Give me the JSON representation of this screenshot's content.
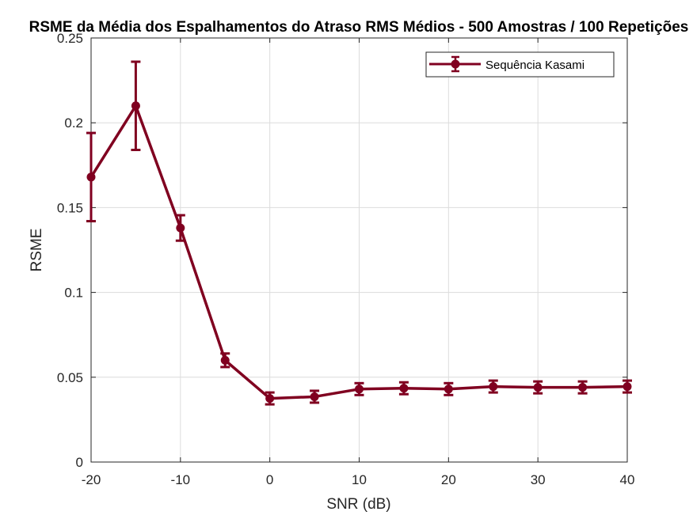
{
  "chart_data": {
    "type": "line",
    "title": "RSME da Média dos Espalhamentos do Atraso RMS Médios - 500 Amostras / 100 Repetições",
    "xlabel": "SNR (dB)",
    "ylabel": "RSME",
    "xlim": [
      -20,
      40
    ],
    "ylim": [
      0,
      0.25
    ],
    "xticks": [
      -20,
      -10,
      0,
      10,
      20,
      30,
      40
    ],
    "yticks": [
      0,
      0.05,
      0.1,
      0.15,
      0.2,
      0.25
    ],
    "xtick_labels": [
      "-20",
      "-10",
      "0",
      "10",
      "20",
      "30",
      "40"
    ],
    "ytick_labels": [
      "0",
      "0.05",
      "0.1",
      "0.15",
      "0.2",
      "0.25"
    ],
    "grid": true,
    "legend_position": "top-right",
    "series": [
      {
        "name": "Sequência Kasami",
        "color": "#800020",
        "x": [
          -20,
          -15,
          -10,
          -5,
          0,
          5,
          10,
          15,
          20,
          25,
          30,
          35,
          40
        ],
        "y": [
          0.168,
          0.21,
          0.138,
          0.06,
          0.0375,
          0.0385,
          0.043,
          0.0435,
          0.043,
          0.0445,
          0.044,
          0.044,
          0.0445
        ],
        "error": [
          0.026,
          0.026,
          0.0075,
          0.004,
          0.0035,
          0.0035,
          0.0035,
          0.0035,
          0.0035,
          0.0035,
          0.0035,
          0.0035,
          0.0035
        ]
      }
    ]
  }
}
